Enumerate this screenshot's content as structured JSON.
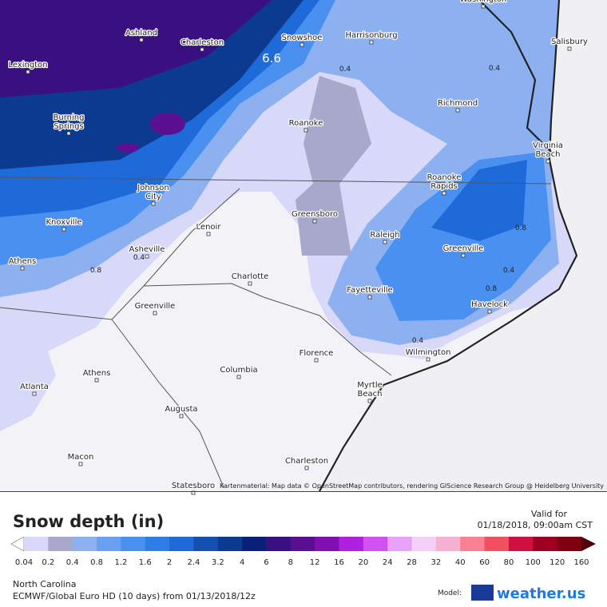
{
  "map": {
    "cities": [
      "Washington",
      "Ashland",
      "Charleston",
      "Snowshoe",
      "Harrisonburg",
      "Salisbury",
      "Lexington",
      "Burning Springs",
      "Roanoke",
      "Richmond",
      "Virginia Beach",
      "Johnson City",
      "Roanoke Rapids",
      "Knoxville",
      "Lenoir",
      "Greensboro",
      "Raleigh",
      "Greenville",
      "Athens",
      "Asheville",
      "Charlotte",
      "Fayetteville",
      "Havelock",
      "Greenville",
      "Wilmington",
      "Florence",
      "Athens",
      "Columbia",
      "Myrtle Beach",
      "Atlanta",
      "Augusta",
      "Macon",
      "Charleston",
      "Statesboro"
    ],
    "contour_labels": [
      "6.6",
      "0.4",
      "0.4",
      "0.4",
      "0.8",
      "0.8",
      "0.4",
      "0.4",
      "0.8"
    ],
    "attribution": "Kartenmaterial: Map data © OpenStreetMap contributors, rendering GIScience Research Group @ Heidelberg University"
  },
  "legend": {
    "title": "Snow depth (in)",
    "valid_label": "Valid for",
    "valid_time": "01/18/2018, 09:00am CST",
    "ticks": [
      0.04,
      0.2,
      0.4,
      0.8,
      1.2,
      1.6,
      2,
      2.4,
      3.2,
      4,
      6,
      8,
      12,
      16,
      20,
      24,
      28,
      32,
      40,
      60,
      80,
      100,
      120,
      160
    ],
    "colors": [
      "#ffffff",
      "#d8d8f8",
      "#a8a8cc",
      "#8cb0f0",
      "#6aa0f0",
      "#4a90f0",
      "#2f7ee8",
      "#1e6ad8",
      "#1450b0",
      "#0c3a90",
      "#0a2078",
      "#3a1080",
      "#5a1090",
      "#8010b0",
      "#b020e0",
      "#d050f0",
      "#e8a0f8",
      "#f4d0f8",
      "#f8b0d0",
      "#f88090",
      "#f05060",
      "#d01040",
      "#a00020",
      "#800010",
      "#500008"
    ]
  },
  "footer": {
    "region": "North Carolina",
    "model_run": "ECMWF/Global Euro HD (10 days) from 01/13/2018/12z",
    "model_label": "Model:",
    "brand": "weather.us"
  }
}
